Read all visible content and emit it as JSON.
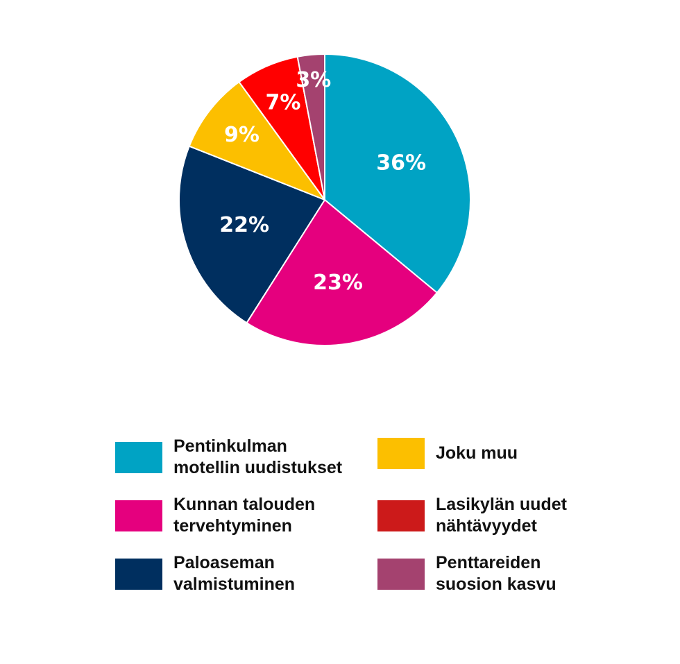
{
  "chart_data": {
    "type": "pie",
    "title": "",
    "slices": [
      {
        "label": "Pentinkulman motellin uudistukset",
        "value": 36,
        "value_label": "36%",
        "color": "#00a3c4"
      },
      {
        "label": "Kunnan talouden tervehtyminen",
        "value": 23,
        "value_label": "23%",
        "color": "#e5007e"
      },
      {
        "label": "Paloaseman valmistuminen",
        "value": 22,
        "value_label": "22%",
        "color": "#002f5f"
      },
      {
        "label": "Joku muu",
        "value": 9,
        "value_label": "9%",
        "color": "#fcbf00"
      },
      {
        "label": "Lasikylän uudet nähtävyydet",
        "value": 7,
        "value_label": "7%",
        "color": "#ff0000"
      },
      {
        "label": "Penttareiden suosion kasvu",
        "value": 3,
        "value_label": "3%",
        "color": "#a4426f"
      }
    ],
    "legend": {
      "placement": "bottom",
      "columns": [
        [
          {
            "line1": "Pentinkulman",
            "line2": "motellin uudistukset",
            "color": "#00a3c4"
          },
          {
            "line1": "Kunnan talouden",
            "line2": "tervehtyminen",
            "color": "#e5007e"
          },
          {
            "line1": "Paloaseman",
            "line2": "valmistuminen",
            "color": "#002f5f"
          }
        ],
        [
          {
            "line1": "Joku muu",
            "line2": "",
            "color": "#fcbf00"
          },
          {
            "line1": "Lasikylän uudet",
            "line2": "nähtävyydet",
            "color": "#cc1a1a"
          },
          {
            "line1": "Penttareiden",
            "line2": "suosion kasvu",
            "color": "#a4426f"
          }
        ]
      ]
    }
  }
}
